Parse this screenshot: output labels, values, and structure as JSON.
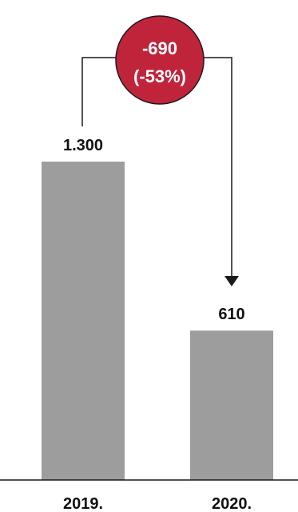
{
  "chart_data": {
    "type": "bar",
    "categories": [
      "2019.",
      "2020."
    ],
    "values": [
      1300,
      610
    ],
    "value_labels": [
      "1.300",
      "610"
    ],
    "ylim": [
      0,
      1300
    ],
    "grid": false,
    "change_annotation": {
      "difference": "-690",
      "percent": "(-53%)"
    },
    "colors": {
      "bar": "#9d9d9d",
      "badge": "#c0243b",
      "badge_text": "#ffffff",
      "text": "#111111"
    }
  }
}
